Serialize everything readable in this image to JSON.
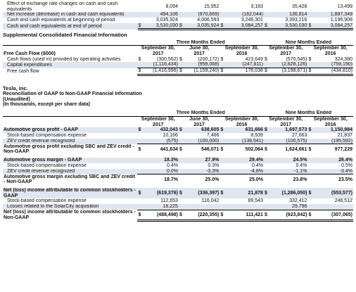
{
  "top_table": {
    "rows": [
      {
        "label": "Effect of exchange rate changes on cash and cash equivalents",
        "values": [
          "8,094",
          "15,952",
          "3,183",
          "35,428",
          "13,499"
        ],
        "shade": false
      },
      {
        "label": "Net increase (decrease) in cash and cash equivalents",
        "values": [
          "494,106",
          "(970,669)",
          "(162,044)",
          "136,814",
          "1,887,349"
        ],
        "shade": true
      },
      {
        "label": "Cash and cash equivalents at beginning of period",
        "values": [
          "3,035,924",
          "4,006,593",
          "3,246,301",
          "3,393,216",
          "1,196,908"
        ],
        "shade": false
      },
      {
        "label": "Cash and cash equivalents at end of period",
        "values": [
          "3,530,030",
          "3,035,924",
          "3,084,257",
          "3,530,030",
          "3,084,257"
        ],
        "shade": true
      }
    ]
  },
  "supplemental": {
    "title": "Supplemental Consolidated Financial Information",
    "group_three": "Three Months Ended",
    "group_nine": "Nine Months Ended",
    "columns": [
      {
        "l1": "September 30,",
        "l2": "2017"
      },
      {
        "l1": "June 30,",
        "l2": "2017"
      },
      {
        "l1": "September 30,",
        "l2": "2016"
      },
      {
        "l1": "September 30,",
        "l2": "2017"
      },
      {
        "l1": "September 30,",
        "l2": "2016"
      }
    ],
    "heading": "Free Cash Flow ($000)",
    "rows": [
      {
        "label": "Cash flows (used in) provided by operating activities",
        "values": [
          "(300,562)",
          "(200,172)",
          "423,649",
          "(570,545)",
          "324,380"
        ]
      },
      {
        "label": "Capital expenditures",
        "values": [
          "(1,116,434)",
          "(959,068)",
          "(247,611)",
          "(2,628,126)",
          "(759,190)"
        ]
      },
      {
        "label": "Free cash flow",
        "values": [
          "(1,416,996)",
          "(1,159,240)",
          "176,038",
          "(3,198,671)",
          "(434,810)"
        ]
      }
    ]
  },
  "reconciliation": {
    "company": "Tesla, Inc.",
    "title": "Reconciliation of GAAP to Non-GAAP Financial Information",
    "unaudited": "(Unaudited)",
    "units": "(In thousands, except per share data)",
    "group_three": "Three Months Ended",
    "group_nine": "Nine Months Ended",
    "columns": [
      {
        "l1": "September 30,",
        "l2": "2017"
      },
      {
        "l1": "June 30,",
        "l2": "2017"
      },
      {
        "l1": "September 30,",
        "l2": "2016"
      },
      {
        "l1": "September 30,",
        "l2": "2017"
      },
      {
        "l1": "September 30,",
        "l2": "2016"
      }
    ],
    "block1": [
      {
        "label": "Automotive gross profit - GAAP",
        "values": [
          "432,043",
          "638,605",
          "631,666",
          "1,697,573",
          "1,150,984"
        ],
        "bold": true,
        "dollar": true
      },
      {
        "label": "Stock-based compensation expense",
        "values": [
          "10,166",
          "7,466",
          "8,939",
          "27,663",
          "21,837"
        ]
      },
      {
        "label": "ZEV credit revenue recognized",
        "values": [
          "(575)",
          "(100,000)",
          "(138,541)",
          "(100,575)",
          "(195,592)"
        ]
      },
      {
        "label": "Automotive gross profit excluding SBC and ZEV credit - Non-GAAP",
        "values": [
          "441,634",
          "546,071",
          "502,064",
          "1,624,661",
          "977,229"
        ],
        "bold": true,
        "dollar": true
      }
    ],
    "block2": [
      {
        "label": "Automotive gross margin - GAAP",
        "values": [
          "18.3%",
          "27.9%",
          "29.4%",
          "24.5%",
          "26.4%"
        ],
        "bold": true
      },
      {
        "label": "Stock-based compensation expense",
        "values": [
          "0.4%",
          "0.3%",
          "0.4%",
          "0.4%",
          "0.5%"
        ]
      },
      {
        "label": "ZEV credit revenue recognized",
        "values": [
          "0.0%",
          "-3.3%",
          "-4.8%",
          "-1.1%",
          "-3.4%"
        ]
      },
      {
        "label": "Automotive gross margin excluding SBC and ZEV credit - Non-GAAP",
        "values": [
          "18.7%",
          "25.0%",
          "25.0%",
          "23.8%",
          "23.5%"
        ],
        "bold": true
      }
    ],
    "block3": [
      {
        "label": "Net (loss) income attributable to common stockholders - GAAP",
        "values": [
          "(619,376)",
          "(336,397)",
          "21,878",
          "(1,286,050)",
          "(553,577)"
        ],
        "bold": true,
        "dollar": true
      },
      {
        "label": "Stock-based compensation expense",
        "values": [
          "112,653",
          "116,042",
          "89,543",
          "332,412",
          "246,512"
        ]
      },
      {
        "label": "Losses related to the SolarCity acquisition",
        "values": [
          "18,225",
          "",
          "",
          "29,796",
          ""
        ]
      },
      {
        "label": "Net (loss) income attributable to common stockholders - Non-GAAP",
        "values": [
          "(488,498)",
          "(220,355)",
          "111,421",
          "(923,842)",
          "(307,065)"
        ],
        "bold": true,
        "dollar": true
      }
    ]
  }
}
